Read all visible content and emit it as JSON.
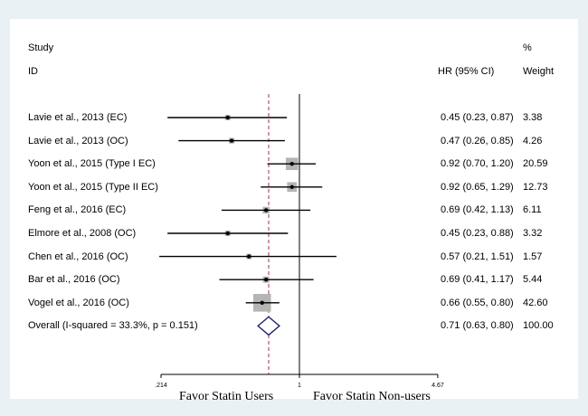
{
  "header": {
    "study": "Study",
    "id": "ID",
    "hr_label": "HR (95% CI)",
    "pct": "%",
    "weight": "Weight"
  },
  "chart_data": {
    "type": "forest",
    "scale": "log",
    "x_ticks": [
      {
        "value": 0.214,
        "label": ".214"
      },
      {
        "value": 1,
        "label": "1"
      },
      {
        "value": 4.67,
        "label": "4.67"
      }
    ],
    "null_value": 1,
    "overall_dashed_at": 0.71,
    "xlabel_left": "Favor Statin Users",
    "xlabel_right": "Favor Statin Non-users",
    "studies": [
      {
        "label": "Lavie et al., 2013 (EC)",
        "hr": 0.45,
        "lo": 0.23,
        "hi": 0.87,
        "ci_text": "0.45 (0.23, 0.87)",
        "weight": "3.38"
      },
      {
        "label": "Lavie et al., 2013 (OC)",
        "hr": 0.47,
        "lo": 0.26,
        "hi": 0.85,
        "ci_text": "0.47 (0.26, 0.85)",
        "weight": "4.26"
      },
      {
        "label": "Yoon et al., 2015 (Type I EC)",
        "hr": 0.92,
        "lo": 0.7,
        "hi": 1.2,
        "ci_text": "0.92 (0.70, 1.20)",
        "weight": "20.59"
      },
      {
        "label": "Yoon et al., 2015 (Type II EC)",
        "hr": 0.92,
        "lo": 0.65,
        "hi": 1.29,
        "ci_text": "0.92 (0.65, 1.29)",
        "weight": "12.73"
      },
      {
        "label": "Feng et al., 2016 (EC)",
        "hr": 0.69,
        "lo": 0.42,
        "hi": 1.13,
        "ci_text": "0.69 (0.42, 1.13)",
        "weight": "6.11"
      },
      {
        "label": "Elmore et al., 2008 (OC)",
        "hr": 0.45,
        "lo": 0.23,
        "hi": 0.88,
        "ci_text": "0.45 (0.23, 0.88)",
        "weight": "3.32"
      },
      {
        "label": "Chen et al., 2016 (OC)",
        "hr": 0.57,
        "lo": 0.21,
        "hi": 1.51,
        "ci_text": "0.57 (0.21, 1.51)",
        "weight": "1.57"
      },
      {
        "label": "Bar et al., 2016 (OC)",
        "hr": 0.69,
        "lo": 0.41,
        "hi": 1.17,
        "ci_text": "0.69 (0.41, 1.17)",
        "weight": "5.44"
      },
      {
        "label": "Vogel et al., 2016 (OC)",
        "hr": 0.66,
        "lo": 0.55,
        "hi": 0.8,
        "ci_text": "0.66 (0.55, 0.80)",
        "weight": "42.60"
      }
    ],
    "overall": {
      "label": "Overall  (I-squared = 33.3%, p = 0.151)",
      "hr": 0.71,
      "lo": 0.63,
      "hi": 0.8,
      "ci_text": "0.71 (0.63, 0.80)",
      "weight": "100.00"
    }
  }
}
